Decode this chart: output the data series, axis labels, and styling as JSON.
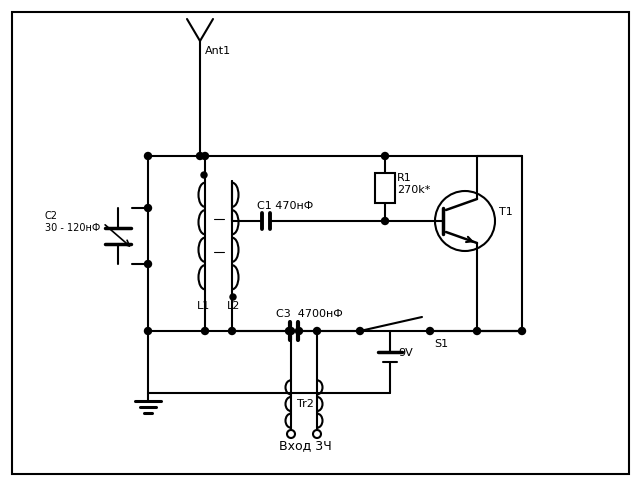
{
  "bg_color": "#ffffff",
  "border_color": "#000000",
  "line_color": "#000000",
  "line_width": 1.5,
  "fig_width": 6.41,
  "fig_height": 4.86,
  "labels": {
    "ant1": "Ant1",
    "c1": "C1 470нФ",
    "c2": "C2\n30 - 120нФ",
    "c3": "C3  4700нФ",
    "r1": "R1\n270k*",
    "l1": "L1",
    "l2": "L2",
    "t1": "T1",
    "tr2": "Tr2",
    "s1": "S1",
    "battery": "9V",
    "input": "Вход 3Ч"
  }
}
